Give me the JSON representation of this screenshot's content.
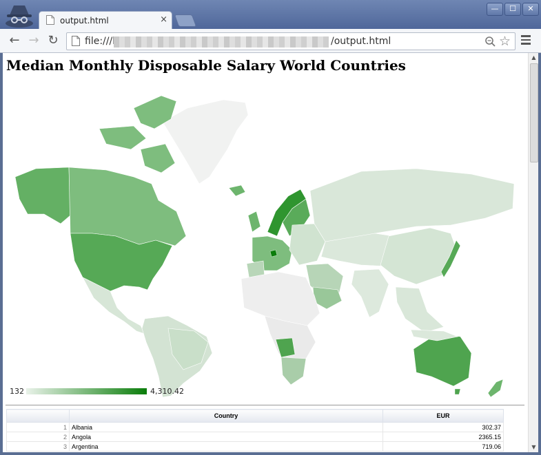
{
  "browser": {
    "tab_title": "output.html",
    "tab_close": "×",
    "url_prefix": "file:///h",
    "url_suffix": "/output.html",
    "window_min": "—",
    "window_max": "☐",
    "window_close": "✕"
  },
  "page": {
    "title": "Median Monthly Disposable Salary World Countries"
  },
  "legend": {
    "min_label": "132",
    "max_label": "4,310.42",
    "color_low": "#e9f2e9",
    "color_high": "#0a7d0a"
  },
  "table": {
    "headers": [
      "",
      "Country",
      "EUR"
    ],
    "rows": [
      {
        "index": "1",
        "country": "Albania",
        "eur": "302.37"
      },
      {
        "index": "2",
        "country": "Angola",
        "eur": "2365.15"
      },
      {
        "index": "3",
        "country": "Argentina",
        "eur": "719.06"
      }
    ]
  },
  "chart_data": {
    "type": "map",
    "title": "Median Monthly Disposable Salary World Countries",
    "color_scale": {
      "min": 132,
      "max": 4310.42,
      "low_color": "#e9f2e9",
      "high_color": "#0a7d0a"
    },
    "countries": [
      {
        "name": "Albania",
        "value": 302.37
      },
      {
        "name": "Angola",
        "value": 2365.15
      },
      {
        "name": "Argentina",
        "value": 719.06
      }
    ]
  }
}
